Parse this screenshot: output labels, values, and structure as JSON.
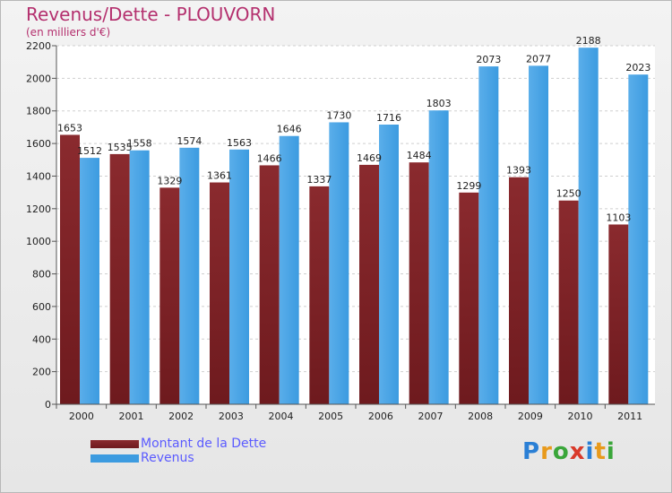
{
  "header": {
    "title": "Revenus/Dette - PLOUVORN",
    "subtitle": "(en milliers d'€)"
  },
  "logo": {
    "text": "Proxiti",
    "letters": [
      {
        "ch": "P",
        "color": "#2a7fd5"
      },
      {
        "ch": "r",
        "color": "#e89a1c"
      },
      {
        "ch": "o",
        "color": "#3aa63a"
      },
      {
        "ch": "x",
        "color": "#d93a2a"
      },
      {
        "ch": "i",
        "color": "#2a7fd5"
      },
      {
        "ch": "t",
        "color": "#e89a1c"
      },
      {
        "ch": "i",
        "color": "#3aa63a"
      }
    ]
  },
  "colors": {
    "dette": "#6e1a1e",
    "dette_top": "#8a2a2e",
    "revenus": "#3c9be0",
    "revenus_light": "#5aaeea",
    "grid": "#cfcfcf"
  },
  "chart_data": {
    "type": "bar",
    "title": "Revenus/Dette - PLOUVORN",
    "subtitle": "(en milliers d'€)",
    "categories": [
      "2000",
      "2001",
      "2002",
      "2003",
      "2004",
      "2005",
      "2006",
      "2007",
      "2008",
      "2009",
      "2010",
      "2011"
    ],
    "series": [
      {
        "name": "Montant de la Dette",
        "values": [
          1653,
          1535,
          1329,
          1361,
          1466,
          1337,
          1469,
          1484,
          1299,
          1393,
          1250,
          1103
        ]
      },
      {
        "name": "Revenus",
        "values": [
          1512,
          1558,
          1574,
          1563,
          1646,
          1730,
          1716,
          1803,
          2073,
          2077,
          2188,
          2023
        ]
      }
    ],
    "data_labels": [
      [
        "1653",
        "1535",
        "1329",
        "1361",
        "1466",
        "1337",
        "1469",
        "1484",
        "1299",
        "1393",
        "1250",
        "1103"
      ],
      [
        "1512",
        "1558",
        "1574",
        "1563",
        "1646",
        "1730",
        "1716",
        "1803",
        "2073",
        "2077",
        "2188",
        "2023"
      ]
    ],
    "ylim": [
      0,
      2200
    ],
    "yticks": [
      "0",
      "200",
      "400",
      "600",
      "800",
      "1000",
      "1200",
      "1400",
      "1600",
      "1800",
      "2000",
      "2200"
    ],
    "grid": true,
    "legend": "bottom-left"
  }
}
